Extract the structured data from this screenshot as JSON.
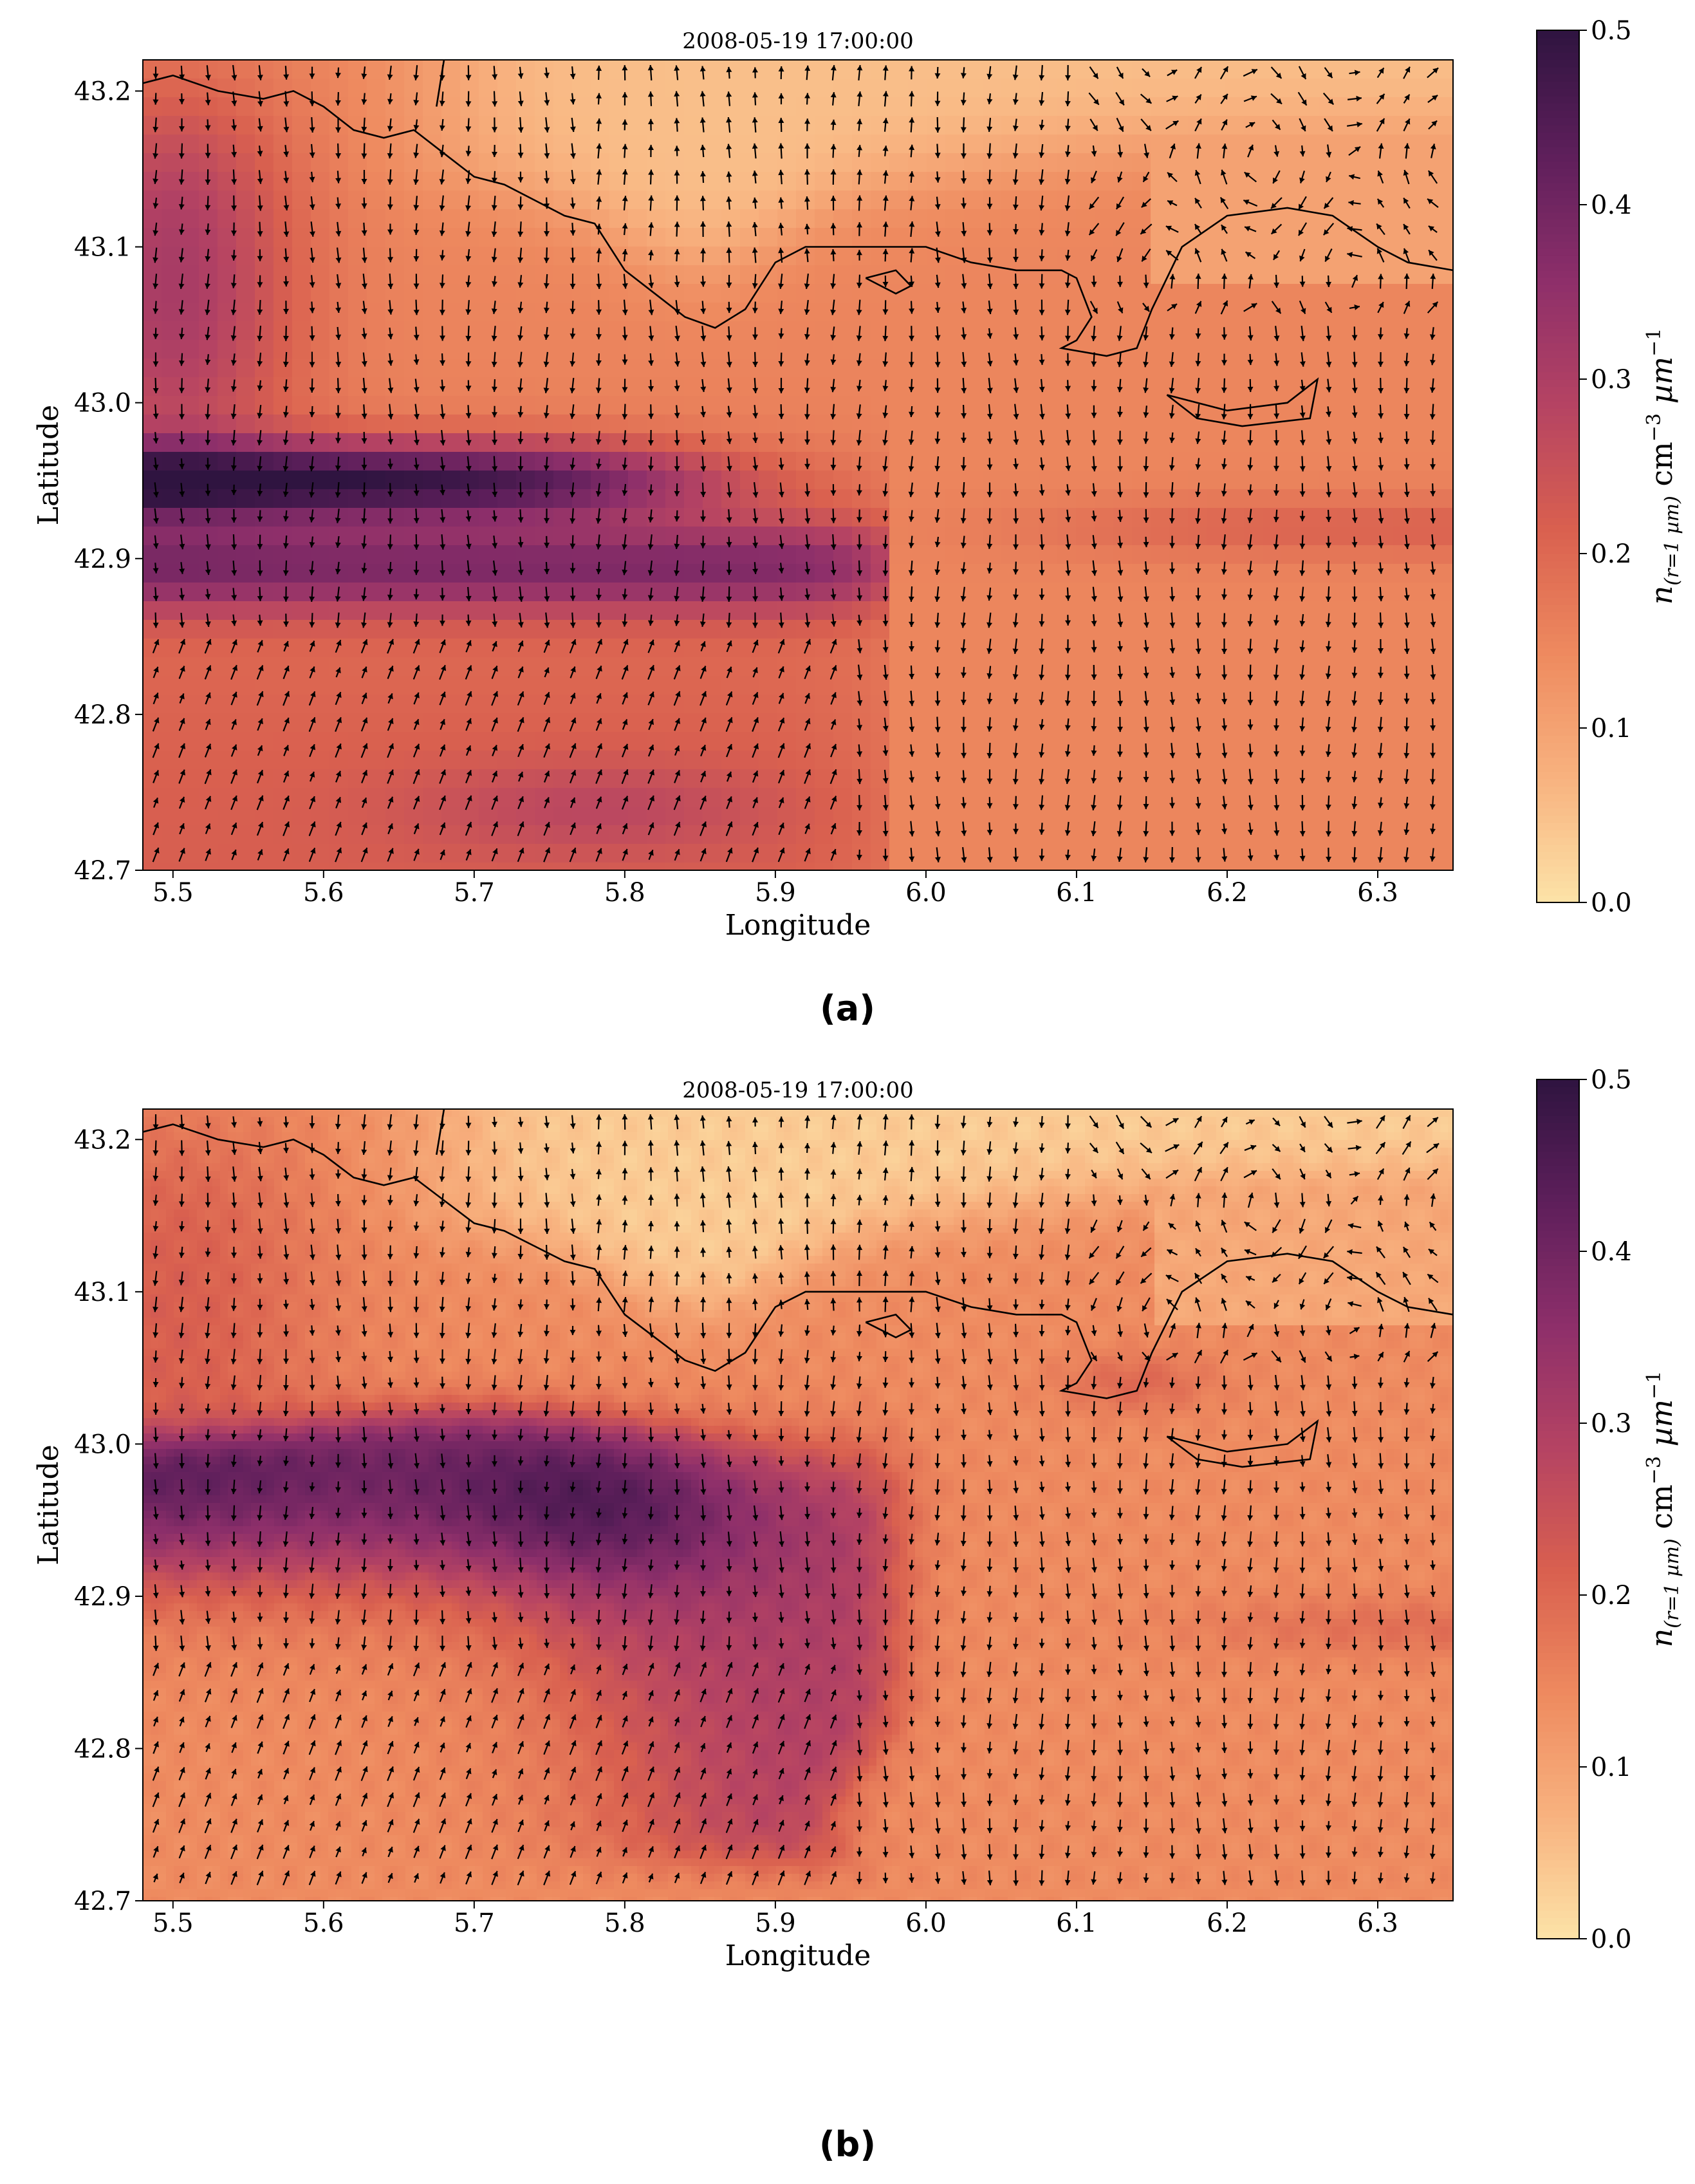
{
  "chart_data": [
    {
      "type": "heatmap",
      "panel_label": "(a)",
      "title": "2008-05-19 17:00:00",
      "xlabel": "Longitude",
      "ylabel": "Latitude",
      "xlim": [
        5.48,
        6.35
      ],
      "ylim": [
        42.7,
        43.22
      ],
      "xticks": [
        5.5,
        5.6,
        5.7,
        5.8,
        5.9,
        6.0,
        6.1,
        6.2,
        6.3
      ],
      "yticks": [
        42.7,
        42.8,
        42.9,
        43.0,
        43.1,
        43.2
      ],
      "colorbar": {
        "label": "n(r=1 µm) cm⁻³ µm⁻¹",
        "label_main": "n",
        "label_sub": "(r=1 µm)",
        "label_unit": " cm",
        "label_exp1": "−3",
        "label_mid": " µm",
        "label_exp2": "−1",
        "ticks": [
          "0.0",
          "0.1",
          "0.2",
          "0.3",
          "0.4",
          "0.5"
        ],
        "range": [
          0.0,
          0.5
        ],
        "colormap": [
          "#fce3a8",
          "#f8b27f",
          "#ee8a5f",
          "#d9604f",
          "#b54363",
          "#8d2f6a",
          "#5e1f5b",
          "#2f1440"
        ]
      },
      "field_features": [
        {
          "description": "plume core",
          "lon": [
            5.48,
            5.78
          ],
          "lat": [
            42.93,
            42.97
          ],
          "value": 0.49
        },
        {
          "description": "southern band",
          "lon": [
            5.48,
            5.98
          ],
          "lat": [
            42.87,
            42.92
          ],
          "value": 0.36
        },
        {
          "description": "western coastal plume",
          "lon": [
            5.48,
            5.62
          ],
          "lat": [
            43.0,
            43.15
          ],
          "value": 0.33
        },
        {
          "description": "open sea background",
          "lon": [
            6.0,
            6.35
          ],
          "lat": [
            42.7,
            43.0
          ],
          "value": 0.15
        },
        {
          "description": "near-coast bay",
          "lon": [
            5.75,
            5.95
          ],
          "lat": [
            43.1,
            43.22
          ],
          "value": 0.03
        }
      ],
      "arrow_field": "wind vectors on regular lon/lat grid",
      "grid_resolution": "coarse"
    },
    {
      "type": "heatmap",
      "panel_label": "(b)",
      "title": "2008-05-19 17:00:00",
      "xlabel": "Longitude",
      "ylabel": "Latitude",
      "xlim": [
        5.48,
        6.35
      ],
      "ylim": [
        42.7,
        43.22
      ],
      "xticks": [
        5.5,
        5.6,
        5.7,
        5.8,
        5.9,
        6.0,
        6.1,
        6.2,
        6.3
      ],
      "yticks": [
        42.7,
        42.8,
        42.9,
        43.0,
        43.1,
        43.2
      ],
      "colorbar": {
        "label": "n(r=1 µm) cm⁻³ µm⁻¹",
        "label_main": "n",
        "label_sub": "(r=1 µm)",
        "label_unit": " cm",
        "label_exp1": "−3",
        "label_mid": " µm",
        "label_exp2": "−1",
        "ticks": [
          "0.0",
          "0.1",
          "0.2",
          "0.3",
          "0.4",
          "0.5"
        ],
        "range": [
          0.0,
          0.5
        ],
        "colormap": [
          "#fce3a8",
          "#f8b27f",
          "#ee8a5f",
          "#d9604f",
          "#b54363",
          "#8d2f6a",
          "#5e1f5b",
          "#2f1440"
        ]
      },
      "field_features": [
        {
          "description": "plume core",
          "lon": [
            5.48,
            5.8
          ],
          "lat": [
            42.94,
            43.02
          ],
          "value": 0.4
        },
        {
          "description": "plume body",
          "lon": [
            5.75,
            6.02
          ],
          "lat": [
            42.73,
            42.98
          ],
          "value": 0.3
        },
        {
          "description": "western background",
          "lon": [
            5.48,
            5.78
          ],
          "lat": [
            42.7,
            42.92
          ],
          "value": 0.18
        },
        {
          "description": "open sea background",
          "lon": [
            6.0,
            6.35
          ],
          "lat": [
            42.7,
            43.0
          ],
          "value": 0.13
        },
        {
          "description": "near-coast bay",
          "lon": [
            5.75,
            5.95
          ],
          "lat": [
            43.1,
            43.22
          ],
          "value": 0.02
        }
      ],
      "arrow_field": "wind vectors on regular lon/lat grid",
      "grid_resolution": "fine"
    }
  ]
}
